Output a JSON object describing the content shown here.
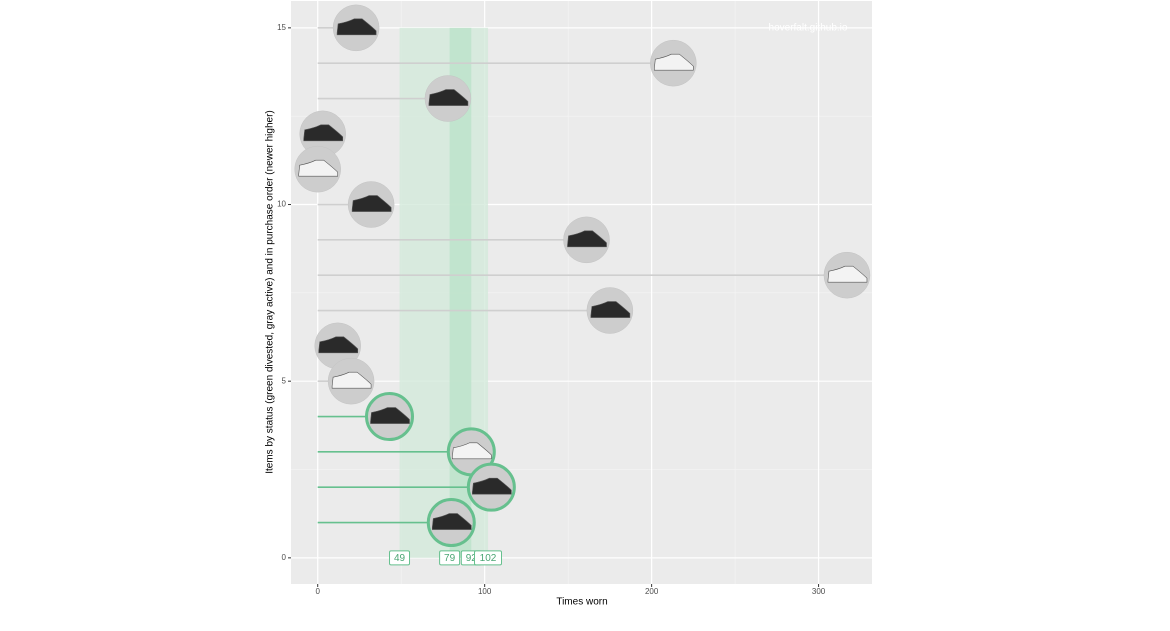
{
  "chart_data": {
    "type": "lollipop",
    "xlabel": "Times worn",
    "ylabel": "Items by status (green divested, gray active) and in purchase order (newer higher)",
    "watermark": "hoverfalt.github.io",
    "series": [
      {
        "color": "#cfcfcf",
        "marker_stroke": "#c4c4c4",
        "x": [
          23,
          213,
          78,
          3,
          0,
          32,
          161,
          317,
          175,
          12,
          20
        ],
        "values": [
          15,
          14,
          13,
          12,
          11,
          10,
          9,
          8,
          7,
          6,
          5
        ]
      },
      {
        "color": "#66c08e",
        "marker_stroke": "#66c08e",
        "x": [
          43,
          92,
          104,
          80
        ],
        "values": [
          4,
          3,
          2,
          1
        ]
      }
    ],
    "markers": [
      49,
      79,
      92,
      102
    ],
    "band_colors": [
      "#d3eadb",
      "#bfe3cc"
    ],
    "xlim": [
      -16,
      332
    ],
    "ylim": [
      -0.74,
      15.76
    ],
    "xticks": [
      0,
      100,
      200,
      300
    ],
    "yticks": [
      0,
      5,
      10,
      15
    ],
    "minor_xticks": [
      50,
      150,
      250
    ],
    "minor_yticks": [
      2.5,
      7.5,
      12.5
    ],
    "grid": true
  }
}
